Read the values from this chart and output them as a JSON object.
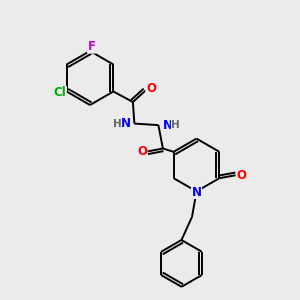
{
  "background_color": "#ebebeb",
  "atom_colors": {
    "C": "#000000",
    "N": "#0000ff",
    "O": "#ff0000",
    "F": "#cc00cc",
    "Cl": "#00aa00",
    "H": "#666666"
  },
  "bond_color": "#000000",
  "bond_width": 1.4,
  "font_size_atoms": 8.5
}
